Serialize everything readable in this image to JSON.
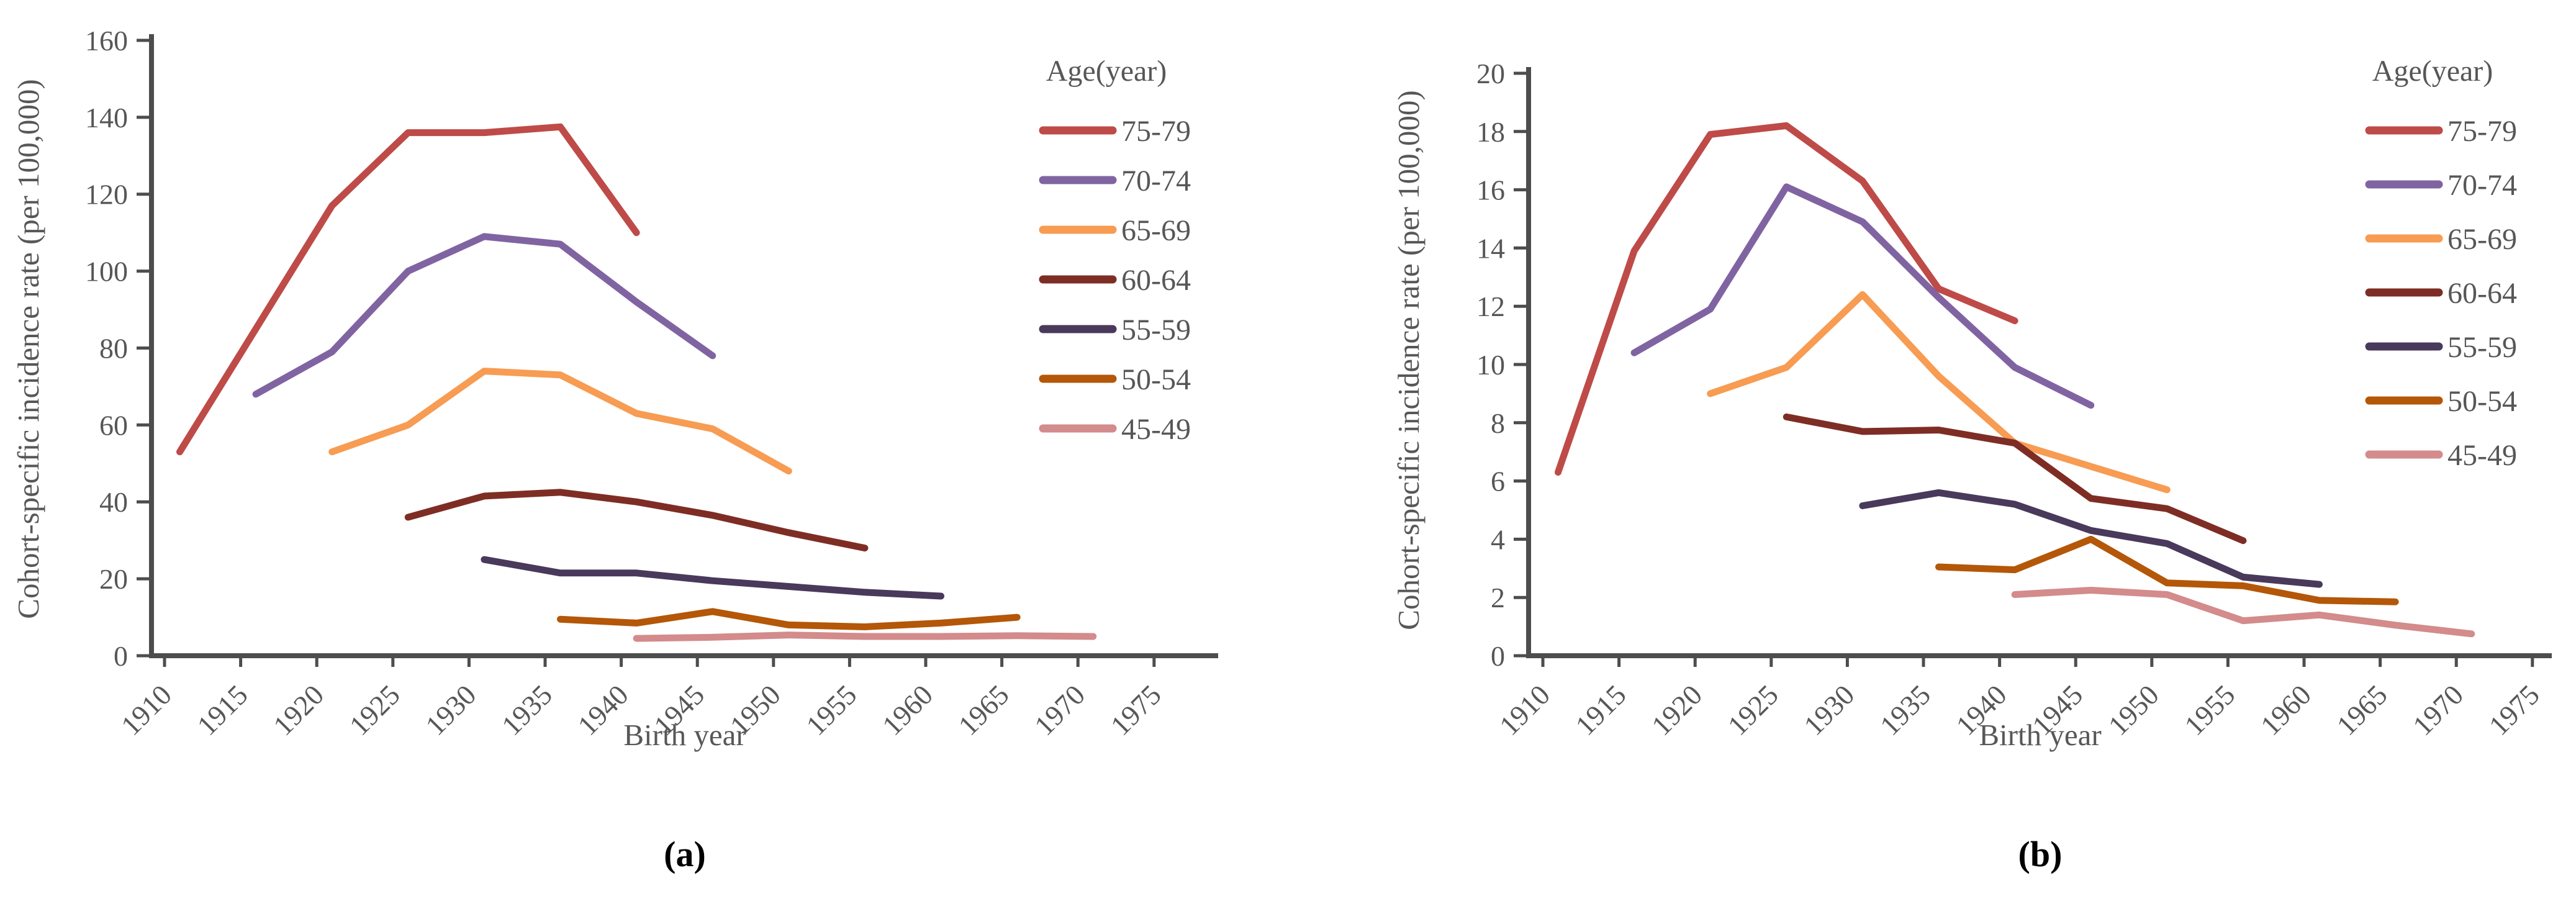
{
  "figure": {
    "panel_a_label": "(a)",
    "panel_b_label": "(b)",
    "axis_color": "#4d4d4d",
    "text_color": "#575757"
  },
  "chart_data": [
    {
      "type": "line",
      "panel": "a",
      "title": "",
      "xlabel": "Birth year",
      "ylabel": "Cohort-specific incidence rate (per 100,000)",
      "legend_title": "Age(year)",
      "legend_position": "right-inside",
      "grid": false,
      "xlim": [
        1908,
        1979
      ],
      "x_ticks": [
        1910,
        1915,
        1920,
        1925,
        1930,
        1935,
        1940,
        1945,
        1950,
        1955,
        1960,
        1965,
        1970,
        1975
      ],
      "ylim": [
        0,
        160
      ],
      "y_tick_step": 20,
      "series": [
        {
          "name": "75-79",
          "color": "#BE4B48",
          "x": [
            1911,
            1916,
            1921,
            1926,
            1931,
            1936,
            1941
          ],
          "values": [
            53,
            85,
            117,
            136,
            136,
            137.5,
            110
          ]
        },
        {
          "name": "70-74",
          "color": "#8064A2",
          "x": [
            1916,
            1921,
            1926,
            1931,
            1936,
            1941,
            1946
          ],
          "values": [
            68,
            79,
            100,
            109,
            107,
            92,
            78
          ]
        },
        {
          "name": "65-69",
          "color": "#F79C52",
          "x": [
            1921,
            1926,
            1931,
            1936,
            1941,
            1946,
            1951
          ],
          "values": [
            53,
            60,
            74,
            73,
            63,
            59,
            48
          ]
        },
        {
          "name": "60-64",
          "color": "#7E2D25",
          "x": [
            1926,
            1931,
            1936,
            1941,
            1946,
            1951,
            1956
          ],
          "values": [
            36,
            41.5,
            42.5,
            40,
            36.5,
            32,
            28
          ]
        },
        {
          "name": "55-59",
          "color": "#49395B",
          "x": [
            1931,
            1936,
            1941,
            1946,
            1951,
            1956,
            1961
          ],
          "values": [
            25,
            21.5,
            21.5,
            19.5,
            18,
            16.5,
            15.5
          ]
        },
        {
          "name": "50-54",
          "color": "#B45708",
          "x": [
            1936,
            1941,
            1946,
            1951,
            1956,
            1961,
            1966
          ],
          "values": [
            9.5,
            8.5,
            11.5,
            8,
            7.5,
            8.5,
            10
          ]
        },
        {
          "name": "45-49",
          "color": "#D38B8B",
          "x": [
            1941,
            1946,
            1951,
            1956,
            1961,
            1966,
            1971
          ],
          "values": [
            4.5,
            4.8,
            5.4,
            5,
            5,
            5.2,
            5
          ]
        }
      ]
    },
    {
      "type": "line",
      "panel": "b",
      "title": "",
      "xlabel": "Birth year",
      "ylabel": "Cohort-specific incidence rate (per 100,000)",
      "legend_title": "Age(year)",
      "legend_position": "right-inside",
      "grid": false,
      "xlim": [
        1908,
        1979
      ],
      "x_ticks": [
        1910,
        1915,
        1920,
        1925,
        1930,
        1935,
        1940,
        1945,
        1950,
        1955,
        1960,
        1965,
        1970,
        1975
      ],
      "ylim": [
        0,
        20
      ],
      "y_tick_step": 2,
      "series": [
        {
          "name": "75-79",
          "color": "#BE4B48",
          "x": [
            1911,
            1916,
            1921,
            1926,
            1931,
            1936,
            1941
          ],
          "values": [
            6.3,
            13.9,
            17.9,
            18.2,
            16.3,
            12.6,
            11.5
          ]
        },
        {
          "name": "70-74",
          "color": "#8064A2",
          "x": [
            1916,
            1921,
            1926,
            1931,
            1936,
            1941,
            1946
          ],
          "values": [
            10.4,
            11.9,
            16.1,
            14.9,
            12.3,
            9.9,
            8.6
          ]
        },
        {
          "name": "65-69",
          "color": "#F79C52",
          "x": [
            1921,
            1926,
            1931,
            1936,
            1941,
            1946,
            1951
          ],
          "values": [
            9.0,
            9.9,
            12.4,
            9.6,
            7.3,
            6.5,
            5.7
          ]
        },
        {
          "name": "60-64",
          "color": "#7E2D25",
          "x": [
            1926,
            1931,
            1936,
            1941,
            1946,
            1951,
            1956
          ],
          "values": [
            8.2,
            7.7,
            7.75,
            7.3,
            5.4,
            5.05,
            3.95
          ]
        },
        {
          "name": "55-59",
          "color": "#49395B",
          "x": [
            1931,
            1936,
            1941,
            1946,
            1951,
            1956,
            1961
          ],
          "values": [
            5.15,
            5.6,
            5.2,
            4.3,
            3.85,
            2.7,
            2.45
          ]
        },
        {
          "name": "50-54",
          "color": "#B45708",
          "x": [
            1936,
            1941,
            1946,
            1951,
            1956,
            1961,
            1966
          ],
          "values": [
            3.05,
            2.95,
            4.0,
            2.5,
            2.4,
            1.9,
            1.85
          ]
        },
        {
          "name": "45-49",
          "color": "#D38B8B",
          "x": [
            1941,
            1946,
            1951,
            1956,
            1961,
            1966,
            1971
          ],
          "values": [
            2.1,
            2.25,
            2.1,
            1.2,
            1.4,
            1.05,
            0.75
          ]
        }
      ]
    }
  ]
}
